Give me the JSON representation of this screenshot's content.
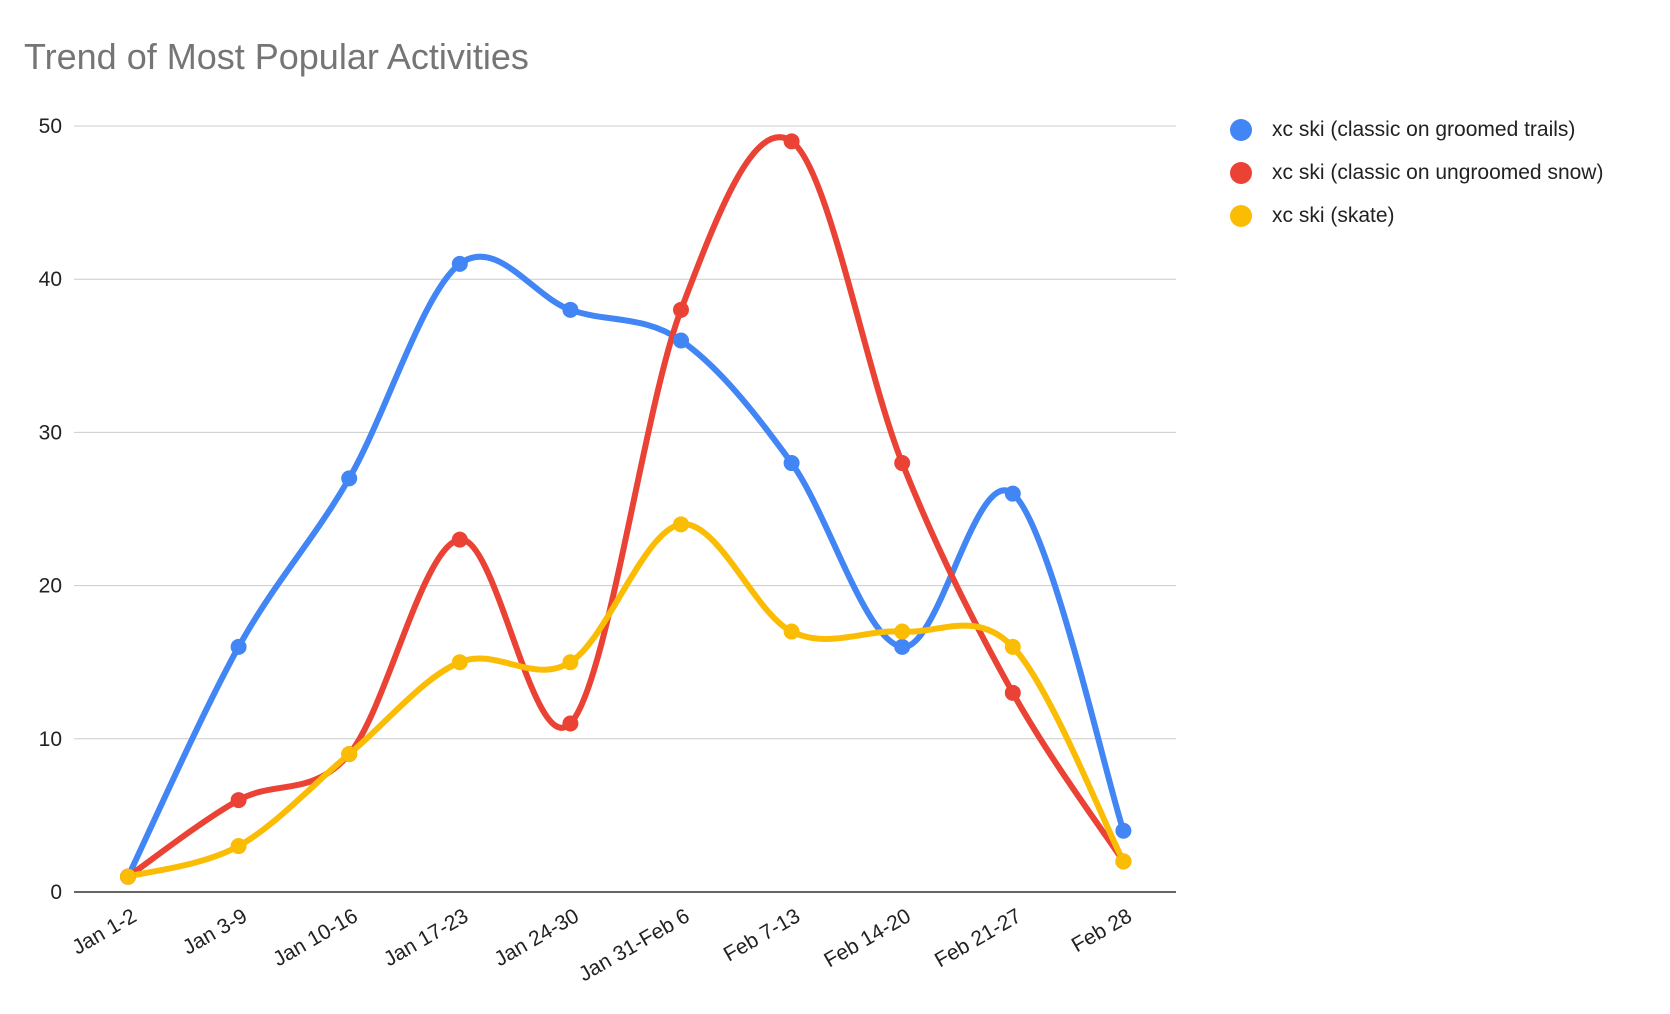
{
  "chart_data": {
    "type": "line",
    "title": "Trend of Most Popular Activities",
    "xlabel": "",
    "ylabel": "",
    "categories": [
      "Jan 1-2",
      "Jan 3-9",
      "Jan 10-16",
      "Jan 17-23",
      "Jan 24-30",
      "Jan 31-Feb 6",
      "Feb 7-13",
      "Feb 14-20",
      "Feb 21-27",
      "Feb 28"
    ],
    "ylim": [
      0,
      50
    ],
    "yticks": [
      0,
      10,
      20,
      30,
      40,
      50
    ],
    "grid": true,
    "smooth": true,
    "legend_position": "right",
    "series": [
      {
        "name": "xc ski (classic on groomed trails)",
        "color": "#4285F4",
        "values": [
          1,
          16,
          27,
          41,
          38,
          36,
          28,
          16,
          26,
          4
        ]
      },
      {
        "name": "xc ski (classic on ungroomed snow)",
        "color": "#EA4335",
        "values": [
          1,
          6,
          9,
          23,
          11,
          38,
          49,
          28,
          13,
          2
        ]
      },
      {
        "name": "xc ski (skate)",
        "color": "#FBBC04",
        "values": [
          1,
          3,
          9,
          15,
          15,
          24,
          17,
          17,
          16,
          2
        ]
      }
    ]
  }
}
